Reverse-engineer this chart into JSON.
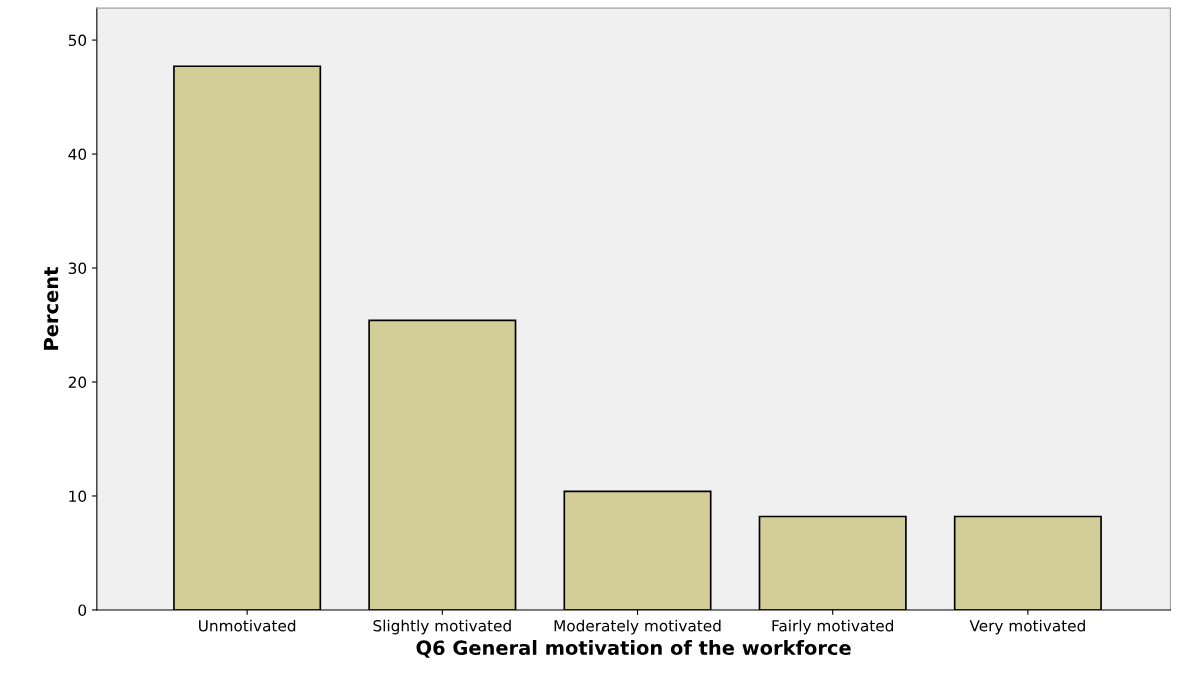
{
  "chart_data": {
    "type": "bar",
    "xlabel": "Q6 General motivation of the workforce",
    "ylabel": "Percent",
    "categories": [
      "Unmotivated",
      "Slightly motivated",
      "Moderately motivated",
      "Fairly motivated",
      "Very motivated"
    ],
    "values": [
      47.7,
      25.4,
      10.4,
      8.2,
      8.2
    ],
    "color": "#d3ce97",
    "ylim": [
      0,
      52.8
    ],
    "yticks": [
      0,
      10,
      20,
      30,
      40,
      50
    ],
    "grid": false,
    "legend": false
  }
}
